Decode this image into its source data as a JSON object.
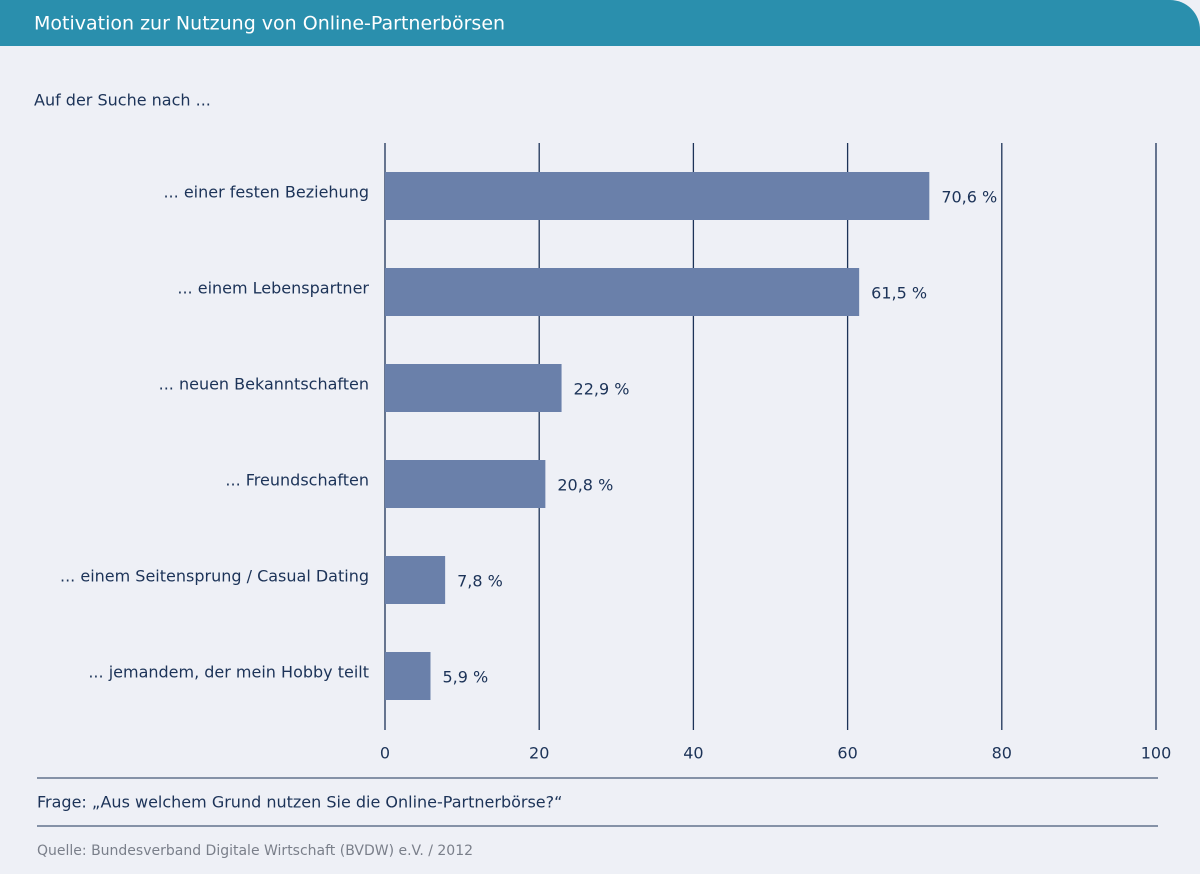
{
  "chart_data": {
    "type": "hbar",
    "title": "Motivation zur Nutzung von Online-Partnerbörsen",
    "subtitle": "Auf der Suche nach ...",
    "categories": [
      "... einer festen Beziehung",
      "... einem Lebenspartner",
      "... neuen Bekanntschaften",
      "... Freundschaften",
      "... einem Seitensprung / Casual Dating",
      "... jemandem, der mein Hobby teilt"
    ],
    "values": [
      70.6,
      61.5,
      22.9,
      20.8,
      7.8,
      5.9
    ],
    "value_labels": [
      "70,6 %",
      "61,5 %",
      "22,9 %",
      "20,8 %",
      "7,8 %",
      "5,9 %"
    ],
    "color": "#6a80aa",
    "xlim": [
      0,
      100
    ],
    "xticks": [
      0,
      20,
      40,
      60,
      80,
      100
    ],
    "grid": true,
    "question": "Frage: „Aus welchem Grund nutzen Sie die Online-Partnerbörse?“",
    "source": "Quelle: Bundesverband Digitale Wirtschaft (BVDW) e.V. / 2012"
  }
}
